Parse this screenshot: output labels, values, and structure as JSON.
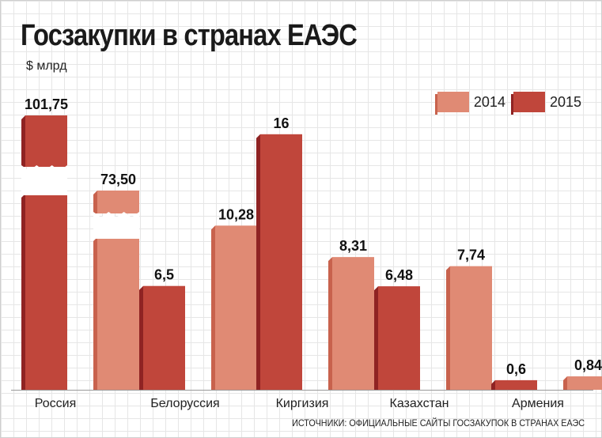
{
  "title": "Госзакупки в странах ЕАЭС",
  "unit": "$ млрд",
  "source": "ИСТОЧНИКИ: ОФИЦИАЛЬНЫЕ САЙТЫ ГОСЗАКУПОК В СТРАНАХ ЕАЭС",
  "colors": {
    "c2014": "#e08a74",
    "c2014_side": "#c8624d",
    "c2015": "#c0463b",
    "c2015_side": "#8f2323"
  },
  "chart_data": {
    "type": "bar",
    "categories": [
      "Россия",
      "Белоруссия",
      "Киргизия",
      "Казахстан",
      "Армения"
    ],
    "series": [
      {
        "name": "2015",
        "values": [
          101.75,
          6.5,
          16,
          6.48,
          0.6
        ],
        "labels": [
          "101,75",
          "6,5",
          "16",
          "6,48",
          "0,6"
        ]
      },
      {
        "name": "2014",
        "values": [
          73.5,
          10.28,
          8.31,
          7.74,
          0.84
        ],
        "labels": [
          "73,50",
          "10,28",
          "8,31",
          "7,74",
          "0,84"
        ]
      }
    ],
    "legend": [
      "2014",
      "2015"
    ],
    "legend_position": "top-right",
    "axis_break": "Россия",
    "ylim": [
      0,
      16
    ]
  }
}
